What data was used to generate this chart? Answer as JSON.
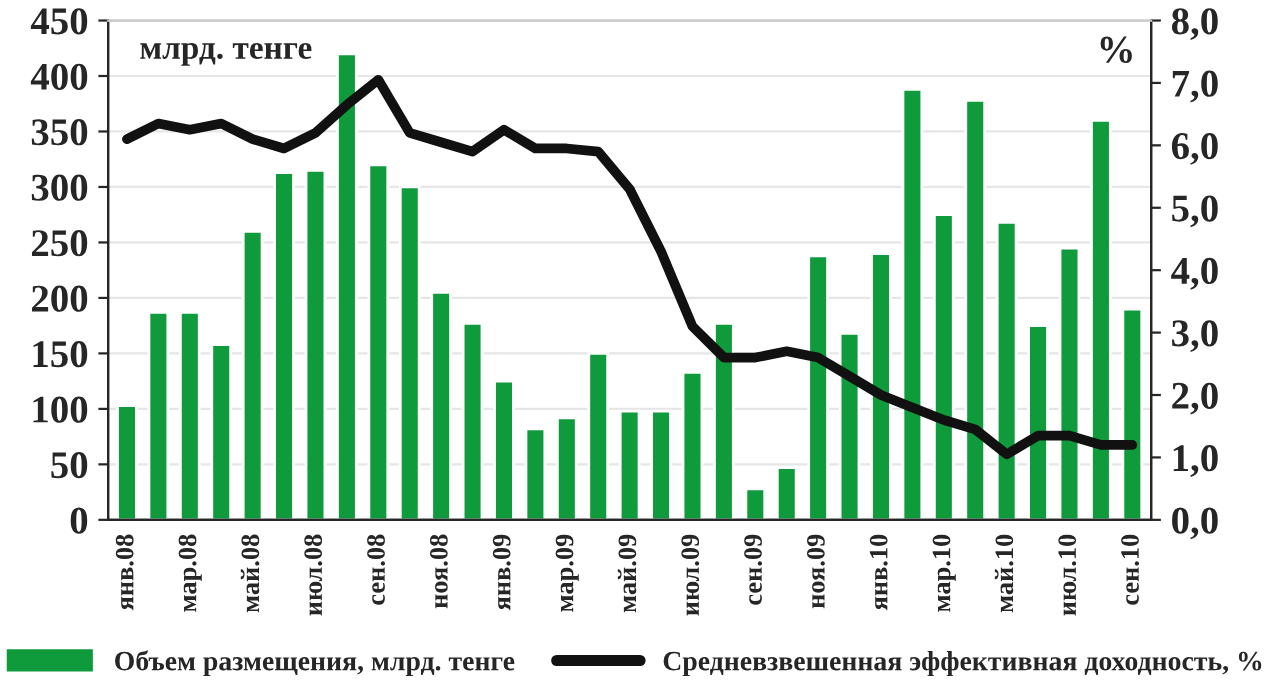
{
  "chart_data": {
    "type": "bar",
    "ylabel": "млрд. тенге",
    "y2label": "%",
    "categories": [
      "янв.08",
      null,
      "мар.08",
      null,
      "май.08",
      null,
      "июл.08",
      null,
      "сен.08",
      null,
      "ноя.08",
      null,
      "янв.09",
      null,
      "мар.09",
      null,
      "май.09",
      null,
      "июл.09",
      null,
      "сен.09",
      null,
      "ноя.09",
      null,
      "янв.10",
      null,
      "мар.10",
      null,
      "май.10",
      null,
      "июл.10",
      null,
      "сен.10"
    ],
    "series": [
      {
        "name": "Объем размещения, млрд. тенге",
        "color": "#0f9a3c",
        "values": [
          103,
          187,
          187,
          158,
          260,
          313,
          315,
          420,
          320,
          300,
          205,
          177,
          125,
          82,
          92,
          150,
          98,
          98,
          133,
          177,
          28,
          47,
          238,
          168,
          240,
          388,
          275,
          378,
          268,
          175,
          245,
          360,
          190
        ]
      },
      {
        "name": "Средневзвешенная эффективная доходность, %",
        "type": "line",
        "axis": "y2",
        "color": "#111111",
        "values": [
          6.1,
          6.35,
          6.25,
          6.35,
          6.1,
          5.95,
          6.2,
          6.65,
          7.05,
          6.2,
          6.05,
          5.9,
          6.25,
          5.95,
          5.95,
          5.9,
          5.3,
          4.3,
          3.1,
          2.6,
          2.6,
          2.7,
          2.6,
          2.3,
          2.0,
          1.8,
          1.6,
          1.45,
          1.05,
          1.35,
          1.35,
          1.2,
          1.2
        ]
      }
    ],
    "ylim": [
      0,
      450
    ],
    "yticks": [
      0,
      50,
      100,
      150,
      200,
      250,
      300,
      350,
      400,
      450
    ],
    "y2lim": [
      0,
      8
    ],
    "y2ticks": [
      {
        "value": 0,
        "label": "0,0"
      },
      {
        "value": 1,
        "label": "1,0"
      },
      {
        "value": 2,
        "label": "2,0"
      },
      {
        "value": 3,
        "label": "3,0"
      },
      {
        "value": 4,
        "label": "4,0"
      },
      {
        "value": 5,
        "label": "5,0"
      },
      {
        "value": 6,
        "label": "6,0"
      },
      {
        "value": 7,
        "label": "7,0"
      },
      {
        "value": 8,
        "label": "8,0"
      }
    ],
    "grid": "y",
    "legend": "bottom",
    "marker": "none",
    "line_style": "solid"
  }
}
